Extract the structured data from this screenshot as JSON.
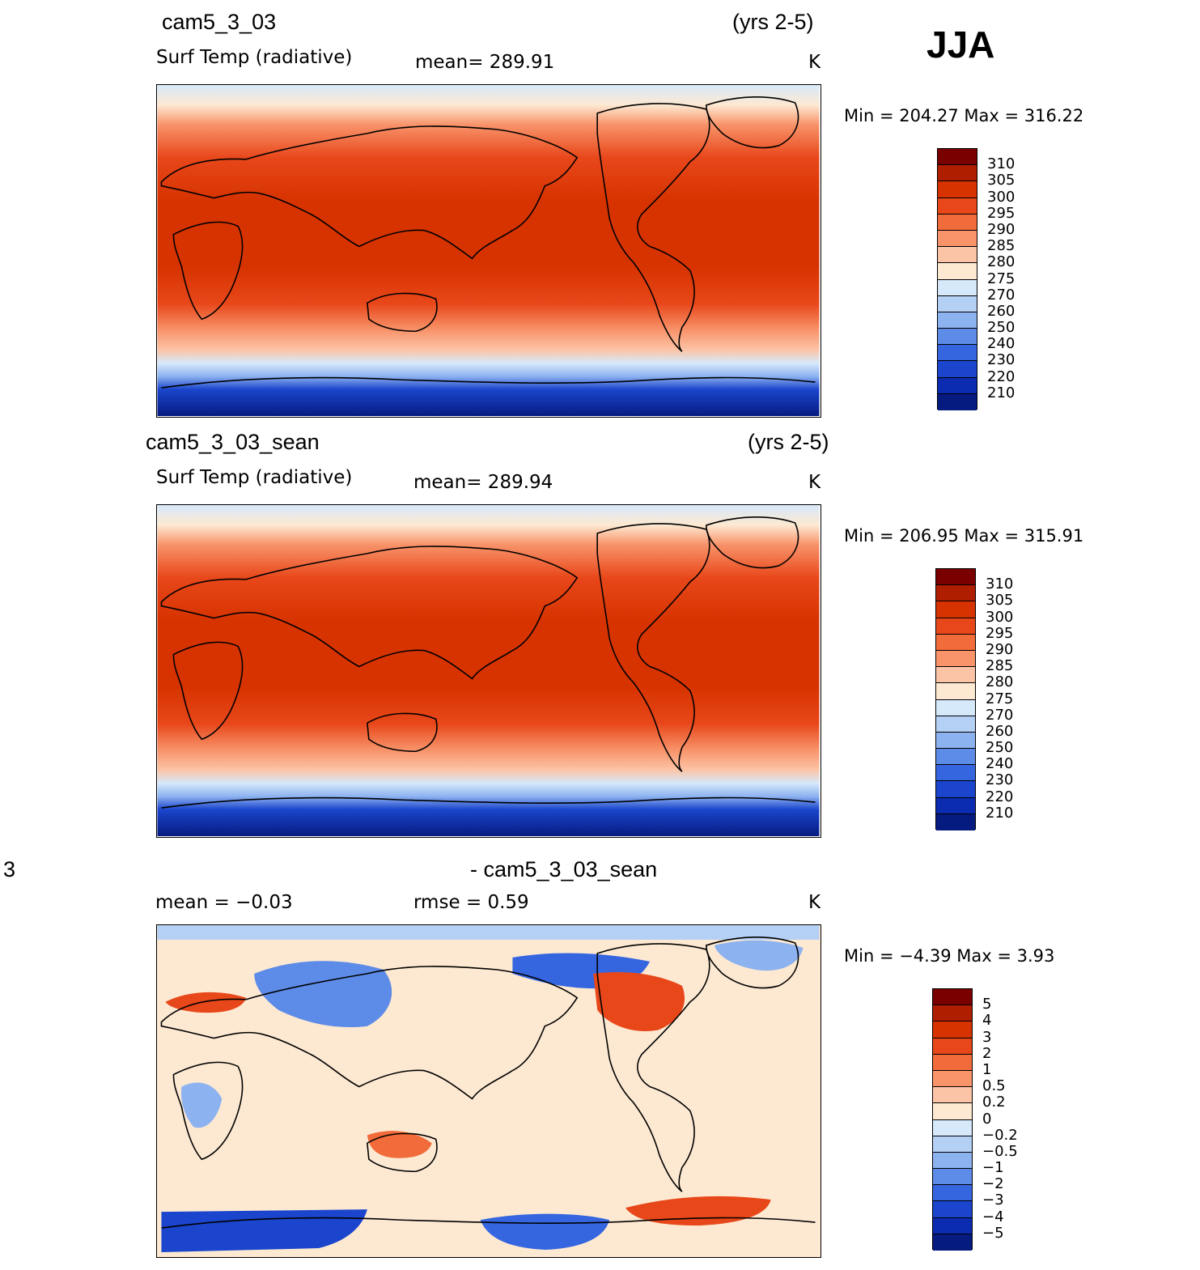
{
  "season": "JJA",
  "panels": [
    {
      "case": "cam5_3_03",
      "years": "(yrs 2-5)",
      "variable": "Surf Temp (radiative)",
      "stat": "mean=  289.91",
      "units": "K",
      "minmax": "Min  =  204.27  Max  =  316.22",
      "type": "abs"
    },
    {
      "case": "cam5_3_03_sean",
      "years": "(yrs 2-5)",
      "variable": "Surf Temp (radiative)",
      "stat": "mean=  289.94",
      "units": "K",
      "minmax": "Min  =  206.95  Max  =  315.91",
      "type": "abs"
    },
    {
      "case_left": "3",
      "case_right": "- cam5_3_03_sean",
      "mean": "mean  =    −0.03",
      "rmse": "rmse  =     0.59",
      "units": "K",
      "minmax": "Min  =    −4.39  Max  =     3.93",
      "type": "diff"
    }
  ],
  "colorbars": {
    "abs": {
      "labels": [
        "310",
        "305",
        "300",
        "295",
        "290",
        "285",
        "280",
        "275",
        "270",
        "260",
        "250",
        "240",
        "230",
        "220",
        "210"
      ],
      "colors": [
        "#7a0000",
        "#b01e00",
        "#d63300",
        "#e8471a",
        "#f26b3a",
        "#f8936a",
        "#fcc4a6",
        "#fde9d2",
        "#d6e9fb",
        "#b4d0f5",
        "#8db2f0",
        "#5d8be8",
        "#3566e0",
        "#1a45cc",
        "#0b2bb0",
        "#061b80"
      ]
    },
    "diff": {
      "labels": [
        "5",
        "4",
        "3",
        "2",
        "1",
        "0.5",
        "0.2",
        "0",
        "−0.2",
        "−0.5",
        "−1",
        "−2",
        "−3",
        "−4",
        "−5"
      ],
      "colors": [
        "#7a0000",
        "#b01e00",
        "#d63300",
        "#e8471a",
        "#f26b3a",
        "#f8936a",
        "#fcc4a6",
        "#fde9d2",
        "#d6e9fb",
        "#b4d0f5",
        "#8db2f0",
        "#5d8be8",
        "#3566e0",
        "#1a45cc",
        "#0b2bb0",
        "#061b80"
      ]
    }
  }
}
